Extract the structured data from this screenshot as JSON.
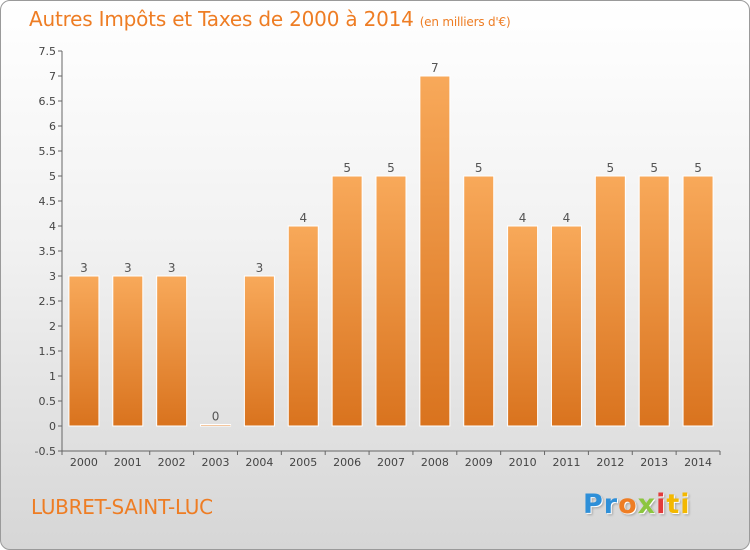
{
  "title": "Autres Impôts et Taxes de 2000 à 2014",
  "unit": "(en milliers d'€)",
  "commune": "LUBRET-SAINT-LUC",
  "logo": {
    "parts": [
      "Pr",
      "o",
      "x",
      "i",
      "ti"
    ]
  },
  "colors": {
    "title": "#ee7d24",
    "bar_light": "#f8a95a",
    "bar_dark": "#d9731e",
    "axis": "#666666"
  },
  "chart_data": {
    "type": "bar",
    "title": "Autres Impôts et Taxes de 2000 à 2014",
    "subtitle": "(en milliers d'€)",
    "categories": [
      "2000",
      "2001",
      "2002",
      "2003",
      "2004",
      "2005",
      "2006",
      "2007",
      "2008",
      "2009",
      "2010",
      "2011",
      "2012",
      "2013",
      "2014"
    ],
    "values": [
      3,
      3,
      3,
      0,
      3,
      4,
      5,
      5,
      7,
      5,
      4,
      4,
      5,
      5,
      5
    ],
    "data_labels": [
      "3",
      "3",
      "3",
      "0",
      "3",
      "4",
      "5",
      "5",
      "7",
      "5",
      "4",
      "4",
      "5",
      "5",
      "5"
    ],
    "ylim": [
      -0.5,
      7.5
    ],
    "yticks": [
      -0.5,
      0,
      0.5,
      1,
      1.5,
      2,
      2.5,
      3,
      3.5,
      4,
      4.5,
      5,
      5.5,
      6,
      6.5,
      7,
      7.5
    ],
    "ytick_labels": [
      "-0.5",
      "0",
      "0.5",
      "1",
      "1.5",
      "2",
      "2.5",
      "3",
      "3.5",
      "4",
      "4.5",
      "5",
      "5.5",
      "6",
      "6.5",
      "7",
      "7.5"
    ],
    "xlabel": "",
    "ylabel": "",
    "grid": false
  }
}
